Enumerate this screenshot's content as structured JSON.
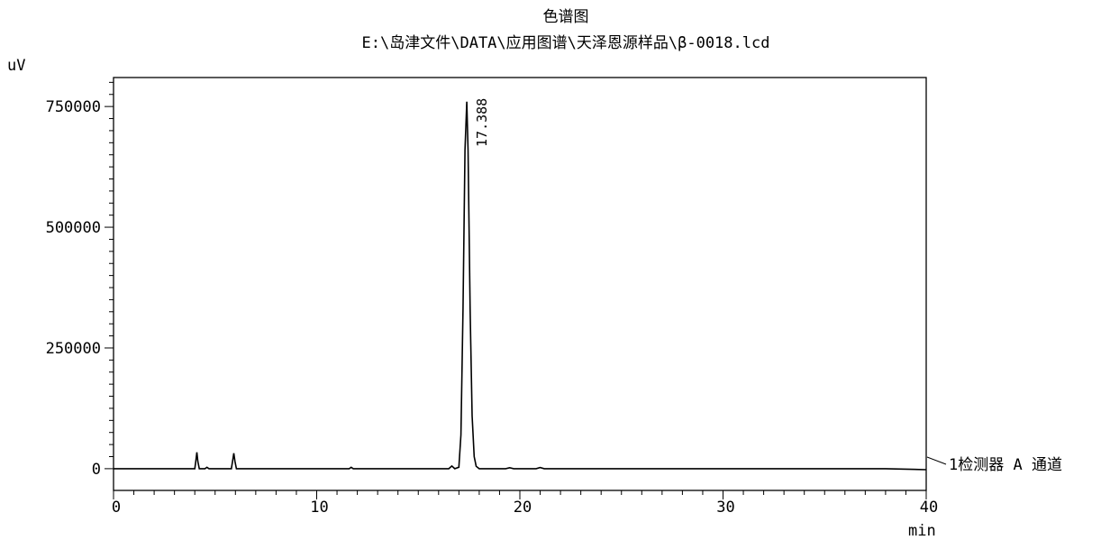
{
  "chart_data": {
    "type": "line",
    "title": "色谱图",
    "subtitle": "E:\\岛津文件\\DATA\\应用图谱\\天泽恩源样品\\β-0018.lcd",
    "ylabel": "uV",
    "xlabel": "min",
    "xlim": [
      0,
      40
    ],
    "ylim": [
      -45000,
      810000
    ],
    "y_ticks": [
      0,
      250000,
      500000,
      750000
    ],
    "y_tick_labels": [
      "0",
      "250000",
      "500000",
      "750000"
    ],
    "x_ticks": [
      0,
      10,
      20,
      30,
      40
    ],
    "x_tick_labels": [
      "0",
      "10",
      "20",
      "30",
      "40"
    ],
    "grid": false,
    "trace_label": "1检测器 A 通道",
    "peak_labels": [
      {
        "text": "17.388",
        "x": 17.388,
        "y": 760000
      }
    ],
    "series": [
      {
        "points": [
          [
            0.0,
            0
          ],
          [
            4.0,
            0
          ],
          [
            4.05,
            15000
          ],
          [
            4.1,
            34000
          ],
          [
            4.15,
            15000
          ],
          [
            4.22,
            0
          ],
          [
            4.5,
            0
          ],
          [
            4.6,
            3000
          ],
          [
            4.7,
            0
          ],
          [
            5.8,
            0
          ],
          [
            5.86,
            15000
          ],
          [
            5.92,
            32000
          ],
          [
            5.98,
            15000
          ],
          [
            6.05,
            0
          ],
          [
            11.6,
            0
          ],
          [
            11.7,
            3000
          ],
          [
            11.8,
            0
          ],
          [
            16.5,
            0
          ],
          [
            16.65,
            5500
          ],
          [
            16.8,
            0
          ],
          [
            17.0,
            3000
          ],
          [
            17.1,
            70000
          ],
          [
            17.2,
            330000
          ],
          [
            17.3,
            660000
          ],
          [
            17.388,
            760000
          ],
          [
            17.45,
            660000
          ],
          [
            17.55,
            330000
          ],
          [
            17.65,
            110000
          ],
          [
            17.75,
            25000
          ],
          [
            17.85,
            5000
          ],
          [
            18.0,
            0
          ],
          [
            19.3,
            0
          ],
          [
            19.5,
            2000
          ],
          [
            19.7,
            0
          ],
          [
            20.8,
            0
          ],
          [
            21.0,
            2500
          ],
          [
            21.2,
            0
          ],
          [
            38.0,
            0
          ],
          [
            40.0,
            -2000
          ]
        ]
      }
    ]
  }
}
